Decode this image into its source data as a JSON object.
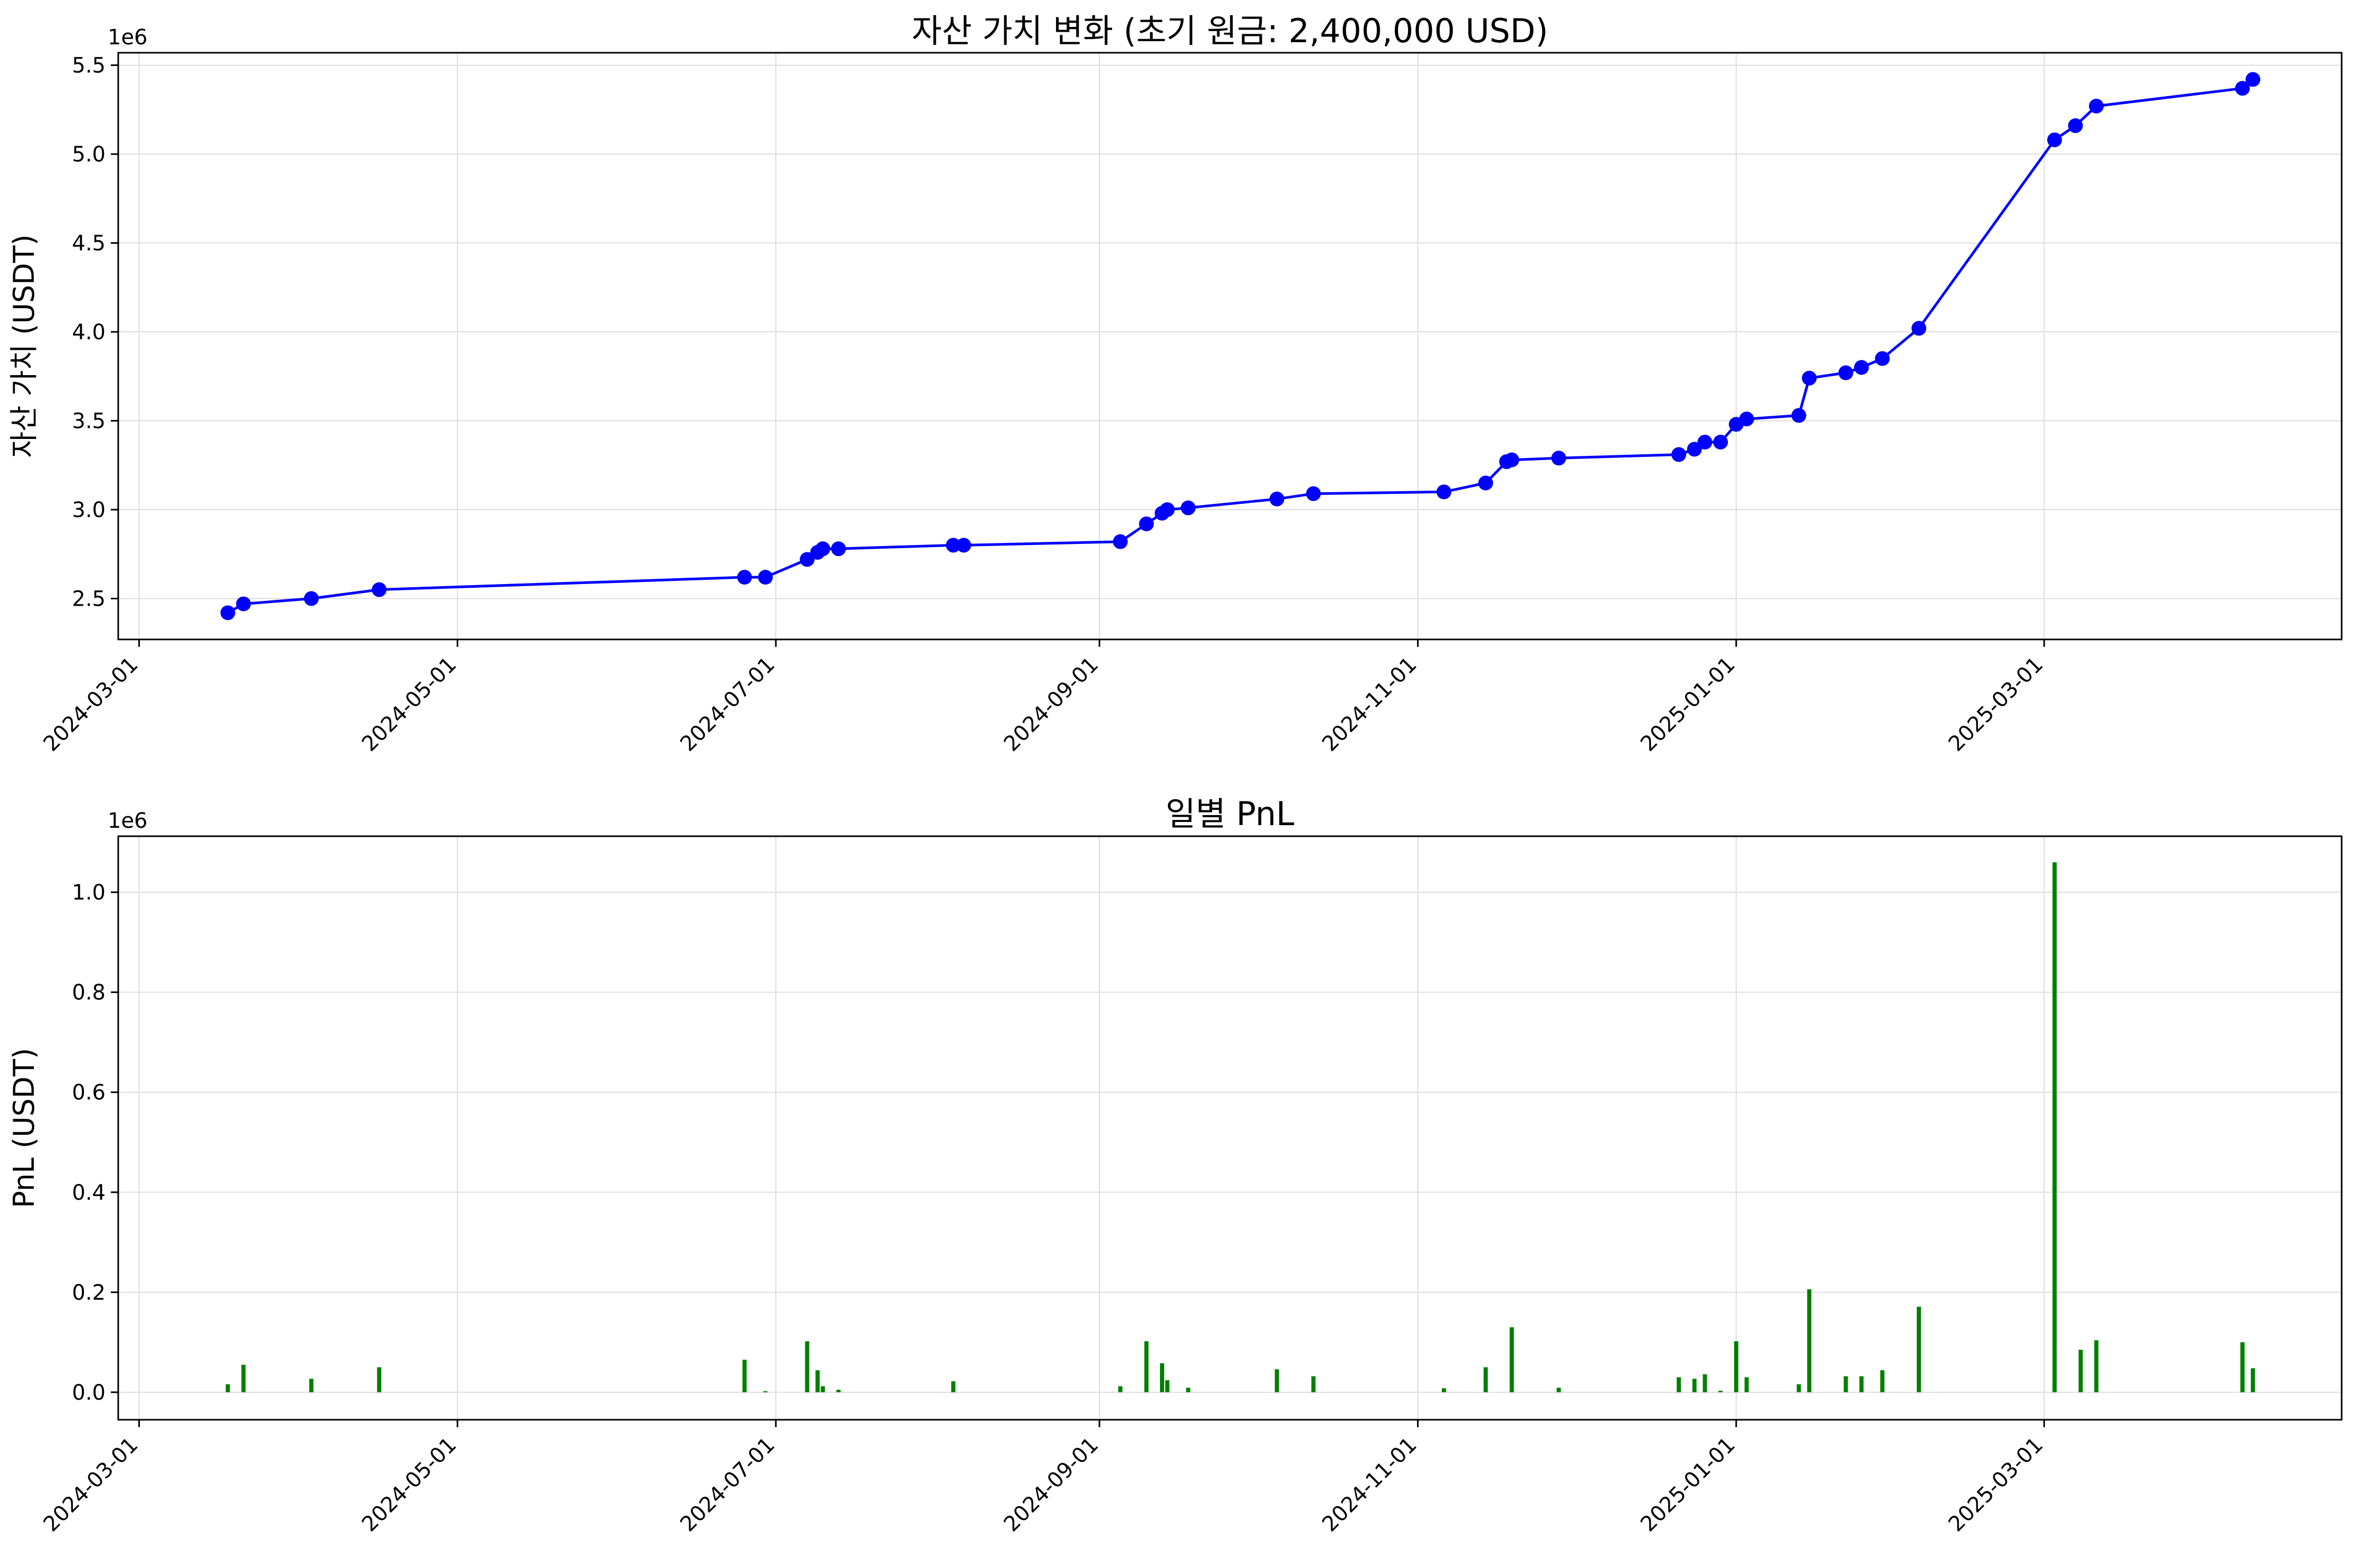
{
  "colors": {
    "line": "#0000ff",
    "marker": "#0000ff",
    "bar": "#008000",
    "grid": "#dddddd",
    "frame": "#000000"
  },
  "chart_data": [
    {
      "type": "line",
      "title": "자산 가치 변화 (초기 원금: 2,400,000 USD)",
      "xlabel": "",
      "ylabel": "자산 가치 (USDT)",
      "y_multiplier_label": "1e6",
      "y_scale_factor": 1000000,
      "x_type": "date",
      "xlim": [
        "2024-02-26",
        "2025-04-27"
      ],
      "ylim": [
        2.27,
        5.57
      ],
      "x_ticks": [
        "2024-03-01",
        "2024-05-01",
        "2024-07-01",
        "2024-09-01",
        "2024-11-01",
        "2025-01-01",
        "2025-03-01"
      ],
      "y_ticks": [
        2.5,
        3.0,
        3.5,
        4.0,
        4.5,
        5.0,
        5.5
      ],
      "y_tick_labels": [
        "2.5",
        "3.0",
        "3.5",
        "4.0",
        "4.5",
        "5.0",
        "5.5"
      ],
      "grid": true,
      "series": [
        {
          "points": [
            [
              "2024-03-18",
              2.42
            ],
            [
              "2024-03-21",
              2.47
            ],
            [
              "2024-04-03",
              2.5
            ],
            [
              "2024-04-16",
              2.55
            ],
            [
              "2024-06-25",
              2.62
            ],
            [
              "2024-06-29",
              2.62
            ],
            [
              "2024-07-07",
              2.72
            ],
            [
              "2024-07-09",
              2.76
            ],
            [
              "2024-07-10",
              2.78
            ],
            [
              "2024-07-13",
              2.78
            ],
            [
              "2024-08-04",
              2.8
            ],
            [
              "2024-08-06",
              2.8
            ],
            [
              "2024-09-05",
              2.82
            ],
            [
              "2024-09-10",
              2.92
            ],
            [
              "2024-09-13",
              2.98
            ],
            [
              "2024-09-14",
              3.0
            ],
            [
              "2024-09-18",
              3.01
            ],
            [
              "2024-10-05",
              3.06
            ],
            [
              "2024-10-12",
              3.09
            ],
            [
              "2024-11-06",
              3.1
            ],
            [
              "2024-11-14",
              3.15
            ],
            [
              "2024-11-18",
              3.27
            ],
            [
              "2024-11-19",
              3.28
            ],
            [
              "2024-11-28",
              3.29
            ],
            [
              "2024-12-21",
              3.31
            ],
            [
              "2024-12-24",
              3.34
            ],
            [
              "2024-12-26",
              3.38
            ],
            [
              "2024-12-29",
              3.38
            ],
            [
              "2025-01-01",
              3.48
            ],
            [
              "2025-01-03",
              3.51
            ],
            [
              "2025-01-13",
              3.53
            ],
            [
              "2025-01-15",
              3.74
            ],
            [
              "2025-01-22",
              3.77
            ],
            [
              "2025-01-25",
              3.8
            ],
            [
              "2025-01-29",
              3.85
            ],
            [
              "2025-02-05",
              4.02
            ],
            [
              "2025-03-03",
              5.08
            ],
            [
              "2025-03-07",
              5.16
            ],
            [
              "2025-03-11",
              5.27
            ],
            [
              "2025-04-08",
              5.37
            ],
            [
              "2025-04-10",
              5.42
            ]
          ]
        }
      ]
    },
    {
      "type": "bar",
      "title": "일별 PnL",
      "xlabel": "",
      "ylabel": "PnL (USDT)",
      "y_multiplier_label": "1e6",
      "y_scale_factor": 1000000,
      "x_type": "date",
      "xlim": [
        "2024-02-26",
        "2025-04-27"
      ],
      "ylim": [
        -0.055,
        1.112
      ],
      "x_ticks": [
        "2024-03-01",
        "2024-05-01",
        "2024-07-01",
        "2024-09-01",
        "2024-11-01",
        "2025-01-01",
        "2025-03-01"
      ],
      "y_ticks": [
        0.0,
        0.2,
        0.4,
        0.6,
        0.8,
        1.0
      ],
      "y_tick_labels": [
        "0.0",
        "0.2",
        "0.4",
        "0.6",
        "0.8",
        "1.0"
      ],
      "grid": true,
      "bar_width_days": 0.8,
      "series": [
        {
          "points": [
            [
              "2024-03-18",
              0.016
            ],
            [
              "2024-03-21",
              0.055
            ],
            [
              "2024-04-03",
              0.027
            ],
            [
              "2024-04-16",
              0.05
            ],
            [
              "2024-06-25",
              0.065
            ],
            [
              "2024-06-29",
              0.002
            ],
            [
              "2024-07-07",
              0.102
            ],
            [
              "2024-07-09",
              0.044
            ],
            [
              "2024-07-10",
              0.012
            ],
            [
              "2024-07-13",
              0.005
            ],
            [
              "2024-08-04",
              0.022
            ],
            [
              "2024-09-05",
              0.012
            ],
            [
              "2024-09-10",
              0.102
            ],
            [
              "2024-09-13",
              0.058
            ],
            [
              "2024-09-14",
              0.024
            ],
            [
              "2024-09-18",
              0.009
            ],
            [
              "2024-10-05",
              0.046
            ],
            [
              "2024-10-12",
              0.032
            ],
            [
              "2024-11-06",
              0.008
            ],
            [
              "2024-11-14",
              0.05
            ],
            [
              "2024-11-19",
              0.13
            ],
            [
              "2024-11-28",
              0.009
            ],
            [
              "2024-12-21",
              0.03
            ],
            [
              "2024-12-24",
              0.027
            ],
            [
              "2024-12-26",
              0.036
            ],
            [
              "2024-12-29",
              0.003
            ],
            [
              "2025-01-01",
              0.102
            ],
            [
              "2025-01-03",
              0.03
            ],
            [
              "2025-01-13",
              0.016
            ],
            [
              "2025-01-15",
              0.206
            ],
            [
              "2025-01-22",
              0.032
            ],
            [
              "2025-01-25",
              0.032
            ],
            [
              "2025-01-29",
              0.044
            ],
            [
              "2025-02-05",
              0.171
            ],
            [
              "2025-03-03",
              1.06
            ],
            [
              "2025-03-08",
              0.085
            ],
            [
              "2025-03-11",
              0.104
            ],
            [
              "2025-04-08",
              0.1
            ],
            [
              "2025-04-10",
              0.048
            ]
          ]
        }
      ]
    }
  ]
}
